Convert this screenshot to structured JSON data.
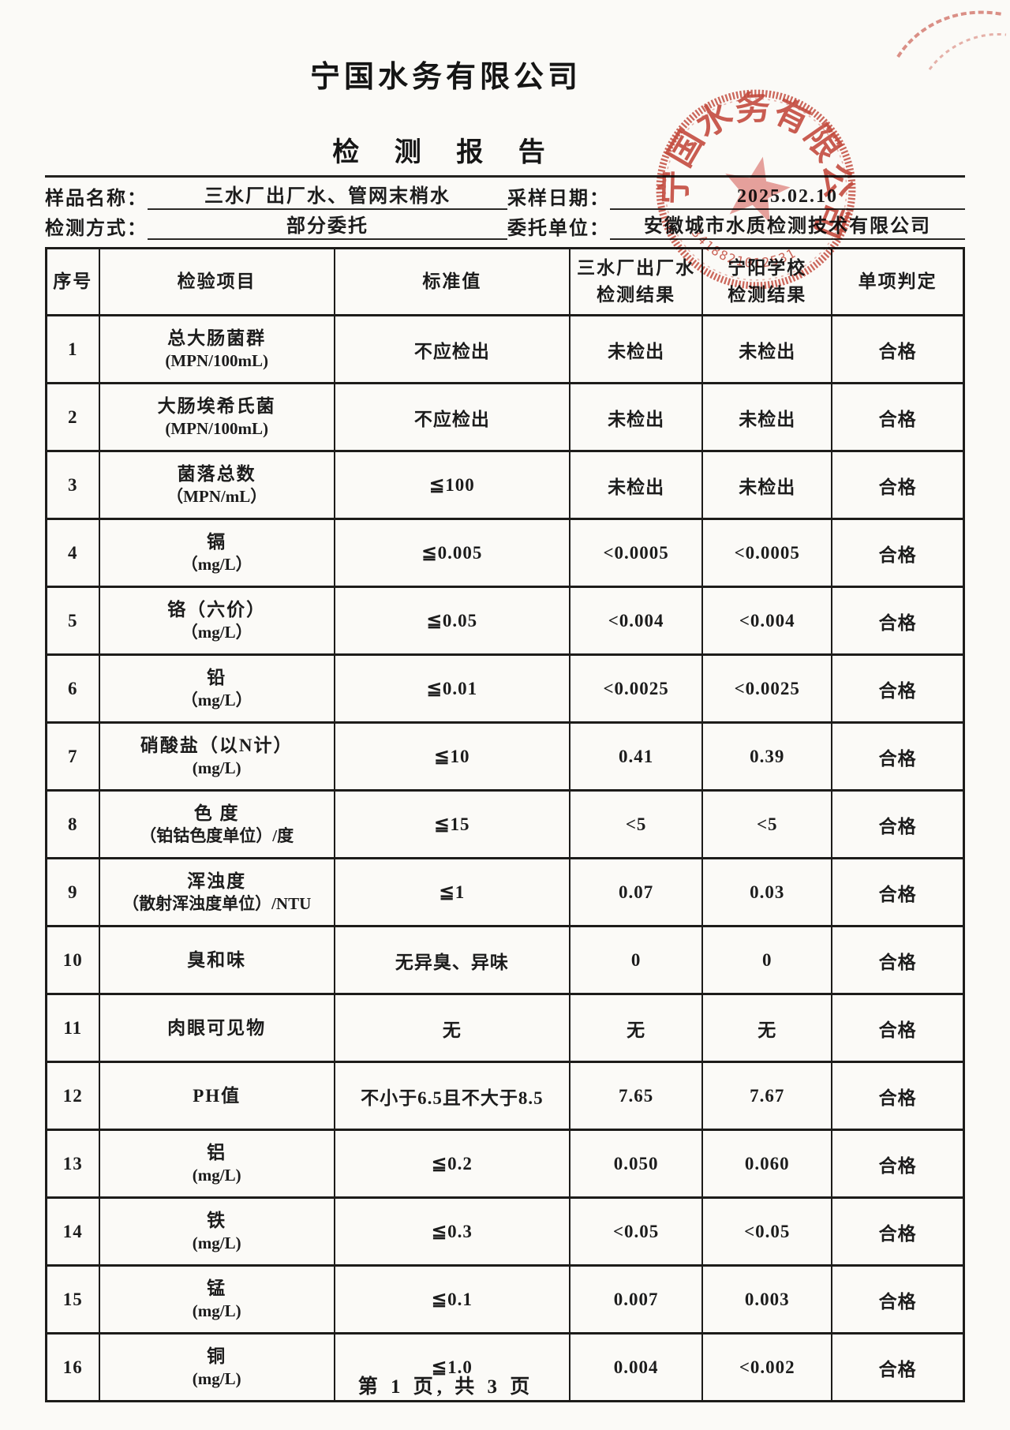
{
  "header": {
    "company": "宁国水务有限公司",
    "title": "检 测 报 告"
  },
  "info": {
    "sample_name": {
      "label": "样品名称：",
      "value": "三水厂出厂水、管网末梢水"
    },
    "test_method": {
      "label": "检测方式：",
      "value": "部分委托"
    },
    "sampling_date": {
      "label": "采样日期：",
      "value": "2025.02.10"
    },
    "client": {
      "label": "委托单位：",
      "value": "安徽城市水质检测技术有限公司"
    }
  },
  "stamp": {
    "ring_text": "宁国水务有限公司",
    "code_text": "3418821012531",
    "color": "#c0392b"
  },
  "table": {
    "headers": [
      [
        "序号"
      ],
      [
        "检验项目"
      ],
      [
        "标准值"
      ],
      [
        "三水厂出厂水",
        "检测结果"
      ],
      [
        "宁阳学校",
        "检测结果"
      ],
      [
        "单项判定"
      ]
    ],
    "rows": [
      {
        "no": "1",
        "item": "总大肠菌群",
        "unit": "(MPN/100mL)",
        "standard": "不应检出",
        "result_plant": "未检出",
        "result_school": "未检出",
        "judgement": "合格"
      },
      {
        "no": "2",
        "item": "大肠埃希氏菌",
        "unit": "(MPN/100mL)",
        "standard": "不应检出",
        "result_plant": "未检出",
        "result_school": "未检出",
        "judgement": "合格"
      },
      {
        "no": "3",
        "item": "菌落总数",
        "unit": "（MPN/mL）",
        "standard": "≦100",
        "result_plant": "未检出",
        "result_school": "未检出",
        "judgement": "合格"
      },
      {
        "no": "4",
        "item": "镉",
        "unit": "（mg/L）",
        "standard": "≦0.005",
        "result_plant": "<0.0005",
        "result_school": "<0.0005",
        "judgement": "合格"
      },
      {
        "no": "5",
        "item": "铬（六价）",
        "unit": "（mg/L）",
        "standard": "≦0.05",
        "result_plant": "<0.004",
        "result_school": "<0.004",
        "judgement": "合格"
      },
      {
        "no": "6",
        "item": "铅",
        "unit": "（mg/L）",
        "standard": "≦0.01",
        "result_plant": "<0.0025",
        "result_school": "<0.0025",
        "judgement": "合格"
      },
      {
        "no": "7",
        "item": "硝酸盐（以N计）",
        "unit": "(mg/L)",
        "standard": "≦10",
        "result_plant": "0.41",
        "result_school": "0.39",
        "judgement": "合格"
      },
      {
        "no": "8",
        "item": "色 度",
        "unit": "（铂钴色度单位）/度",
        "standard": "≦15",
        "result_plant": "<5",
        "result_school": "<5",
        "judgement": "合格"
      },
      {
        "no": "9",
        "item": "浑浊度",
        "unit": "（散射浑浊度单位）/NTU",
        "standard": "≦1",
        "result_plant": "0.07",
        "result_school": "0.03",
        "judgement": "合格"
      },
      {
        "no": "10",
        "item": "臭和味",
        "unit": "",
        "standard": "无异臭、异味",
        "result_plant": "0",
        "result_school": "0",
        "judgement": "合格"
      },
      {
        "no": "11",
        "item": "肉眼可见物",
        "unit": "",
        "standard": "无",
        "result_plant": "无",
        "result_school": "无",
        "judgement": "合格"
      },
      {
        "no": "12",
        "item": "PH值",
        "unit": "",
        "standard": "不小于6.5且不大于8.5",
        "result_plant": "7.65",
        "result_school": "7.67",
        "judgement": "合格"
      },
      {
        "no": "13",
        "item": "铝",
        "unit": "(mg/L)",
        "standard": "≦0.2",
        "result_plant": "0.050",
        "result_school": "0.060",
        "judgement": "合格"
      },
      {
        "no": "14",
        "item": "铁",
        "unit": "(mg/L)",
        "standard": "≦0.3",
        "result_plant": "<0.05",
        "result_school": "<0.05",
        "judgement": "合格"
      },
      {
        "no": "15",
        "item": "锰",
        "unit": "(mg/L)",
        "standard": "≦0.1",
        "result_plant": "0.007",
        "result_school": "0.003",
        "judgement": "合格"
      },
      {
        "no": "16",
        "item": "铜",
        "unit": "(mg/L)",
        "standard": "≦1.0",
        "result_plant": "0.004",
        "result_school": "<0.002",
        "judgement": "合格"
      }
    ]
  },
  "footer": {
    "page_text": "第 1 页, 共 3 页"
  }
}
